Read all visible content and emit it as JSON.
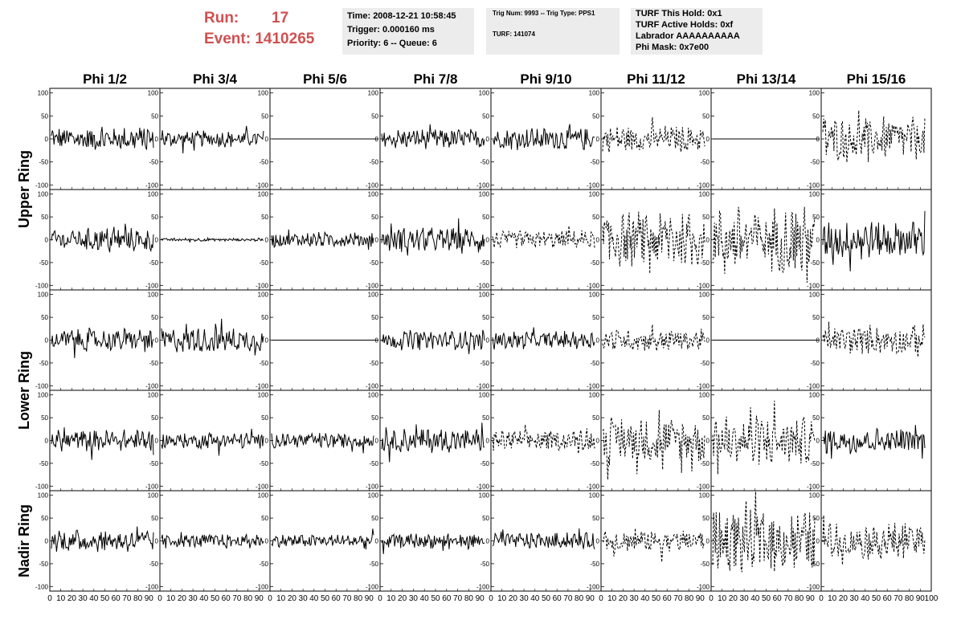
{
  "header": {
    "run_label": "Run:",
    "run_value": "17",
    "event_label": "Event:",
    "event_value": "1410265"
  },
  "info_box_1": {
    "time": "Time: 2008-12-21 10:58:45",
    "trigger": "Trigger: 0.000160 ms",
    "priority": "Priority: 6 -- Queue: 6"
  },
  "info_box_2": {
    "trig": "Trig Num: 9993 -- Trig Type: PPS1",
    "turf": "TURF: 141074"
  },
  "info_box_3": {
    "this_hold": "TURF This Hold: 0x1",
    "active_holds": "TURF Active Holds: 0xf",
    "labrador": "Labrador AAAAAAAAAA",
    "phi_mask": "Phi Mask: 0x7e00"
  },
  "chart_data": {
    "type": "line",
    "title": "",
    "columns": [
      "Phi 1/2",
      "Phi 3/4",
      "Phi 5/6",
      "Phi 7/8",
      "Phi 9/10",
      "Phi 11/12",
      "Phi 13/14",
      "Phi 15/16"
    ],
    "rows": [
      "Upper Ring",
      "Lower Ring",
      "Nadir Ring"
    ],
    "ylim": [
      -110,
      110
    ],
    "yticks": [
      -100,
      -50,
      0,
      50,
      100
    ],
    "xlim": [
      0,
      100
    ],
    "xtick_labels": [
      "0",
      "10",
      "20",
      "30",
      "40",
      "50",
      "60",
      "70",
      "80",
      "90",
      "100"
    ],
    "series_style": [
      "solid",
      "dashed"
    ],
    "line_color": "#000000",
    "panel_amplitude": [
      [
        22,
        15,
        0,
        18,
        20,
        24,
        0,
        40
      ],
      [
        22,
        3,
        14,
        22,
        16,
        50,
        60,
        34
      ],
      [
        22,
        22,
        0,
        18,
        16,
        20,
        0,
        25
      ],
      [
        20,
        15,
        14,
        22,
        18,
        40,
        45,
        24
      ],
      [
        20,
        12,
        12,
        14,
        15,
        22,
        55,
        34
      ]
    ],
    "panel_style": [
      [
        "solid",
        "solid",
        "solid",
        "solid",
        "solid",
        "dashed",
        "solid",
        "dashed"
      ],
      [
        "solid",
        "solid",
        "solid",
        "solid",
        "dashed",
        "dashed",
        "dashed",
        "solid"
      ],
      [
        "solid",
        "solid",
        "solid",
        "solid",
        "solid",
        "dashed",
        "solid",
        "dashed"
      ],
      [
        "solid",
        "solid",
        "solid",
        "solid",
        "dashed",
        "dashed",
        "dashed",
        "solid"
      ],
      [
        "solid",
        "solid",
        "solid",
        "solid",
        "solid",
        "dashed",
        "dashed",
        "dashed"
      ]
    ]
  }
}
